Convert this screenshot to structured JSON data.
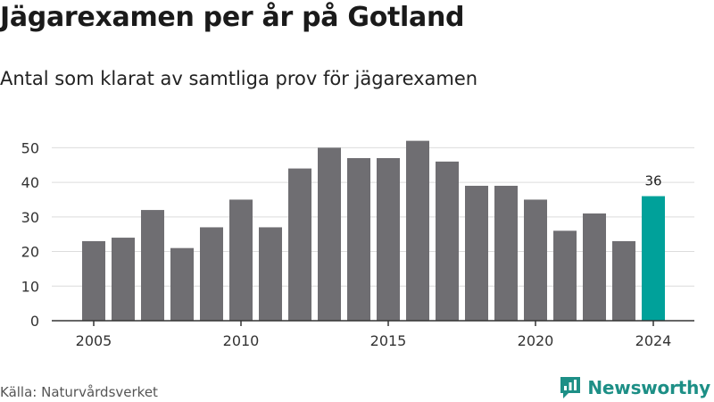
{
  "title": "Jägarexamen per år på Gotland",
  "subtitle": "Antal som klarat av samtliga prov för jägarexamen",
  "source": "Källa: Naturvårdsverket",
  "brand": {
    "name": "Newsworthy",
    "icon": "newsworthy-logo-icon",
    "color": "#1d8f86"
  },
  "colors": {
    "bar": "#6f6e72",
    "highlight": "#00a19a",
    "grid": "#dcdcdc",
    "axis": "#333333"
  },
  "chart_data": {
    "type": "bar",
    "categories": [
      "2005",
      "2006",
      "2007",
      "2008",
      "2009",
      "2010",
      "2011",
      "2012",
      "2013",
      "2014",
      "2015",
      "2016",
      "2017",
      "2018",
      "2019",
      "2020",
      "2021",
      "2022",
      "2023",
      "2024"
    ],
    "values": [
      23,
      24,
      32,
      21,
      27,
      35,
      27,
      44,
      50,
      47,
      47,
      52,
      46,
      39,
      39,
      35,
      26,
      31,
      23,
      36
    ],
    "x_tick_labels": [
      "2005",
      "2010",
      "2015",
      "2020",
      "2024"
    ],
    "y_ticks": [
      0,
      10,
      20,
      30,
      40,
      50
    ],
    "ylim": [
      0,
      55
    ],
    "highlight_category": "2024",
    "data_labels": [
      {
        "category": "2024",
        "value": "36"
      }
    ],
    "grid": true,
    "legend": "none"
  }
}
